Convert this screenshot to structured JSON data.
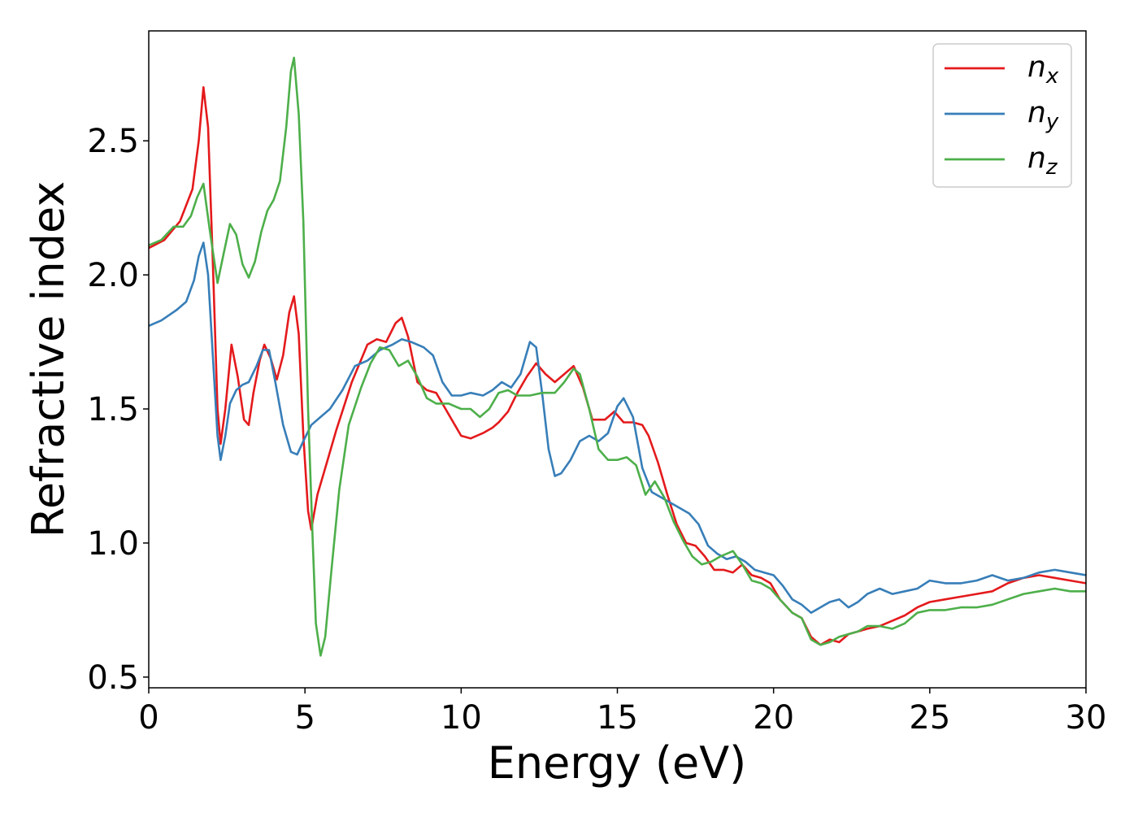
{
  "chart_data": {
    "type": "line",
    "title": "",
    "xlabel": "Energy (eV)",
    "ylabel": "Refractive index",
    "xlim": [
      0,
      30
    ],
    "ylim": [
      0.46,
      2.91
    ],
    "xticks": [
      0,
      5,
      10,
      15,
      20,
      25,
      30
    ],
    "xtick_labels": [
      "0",
      "5",
      "10",
      "15",
      "20",
      "25",
      "30"
    ],
    "yticks": [
      0.5,
      1.0,
      1.5,
      2.0,
      2.5
    ],
    "ytick_labels": [
      "0.5",
      "1.0",
      "1.5",
      "2.0",
      "2.5"
    ],
    "grid": false,
    "legend_position": "top-right",
    "series": [
      {
        "name": "n_x",
        "label_main": "n",
        "label_sub": "x",
        "color": "#e41a1c",
        "points": [
          [
            0,
            2.1
          ],
          [
            0.5,
            2.13
          ],
          [
            1.0,
            2.2
          ],
          [
            1.4,
            2.32
          ],
          [
            1.6,
            2.5
          ],
          [
            1.75,
            2.7
          ],
          [
            1.9,
            2.55
          ],
          [
            2.05,
            2.05
          ],
          [
            2.2,
            1.5
          ],
          [
            2.3,
            1.37
          ],
          [
            2.45,
            1.5
          ],
          [
            2.65,
            1.74
          ],
          [
            2.85,
            1.62
          ],
          [
            3.05,
            1.46
          ],
          [
            3.2,
            1.44
          ],
          [
            3.35,
            1.56
          ],
          [
            3.55,
            1.68
          ],
          [
            3.7,
            1.74
          ],
          [
            3.9,
            1.69
          ],
          [
            4.1,
            1.61
          ],
          [
            4.3,
            1.7
          ],
          [
            4.5,
            1.86
          ],
          [
            4.65,
            1.92
          ],
          [
            4.8,
            1.78
          ],
          [
            4.95,
            1.4
          ],
          [
            5.1,
            1.12
          ],
          [
            5.2,
            1.05
          ],
          [
            5.4,
            1.18
          ],
          [
            5.7,
            1.3
          ],
          [
            6.0,
            1.42
          ],
          [
            6.5,
            1.6
          ],
          [
            7.0,
            1.74
          ],
          [
            7.3,
            1.76
          ],
          [
            7.6,
            1.75
          ],
          [
            7.9,
            1.82
          ],
          [
            8.1,
            1.84
          ],
          [
            8.3,
            1.77
          ],
          [
            8.6,
            1.6
          ],
          [
            8.9,
            1.57
          ],
          [
            9.2,
            1.56
          ],
          [
            9.5,
            1.5
          ],
          [
            9.8,
            1.44
          ],
          [
            10.0,
            1.4
          ],
          [
            10.3,
            1.39
          ],
          [
            10.7,
            1.41
          ],
          [
            11.0,
            1.43
          ],
          [
            11.2,
            1.45
          ],
          [
            11.5,
            1.49
          ],
          [
            11.8,
            1.56
          ],
          [
            12.1,
            1.62
          ],
          [
            12.4,
            1.67
          ],
          [
            12.7,
            1.63
          ],
          [
            13.0,
            1.6
          ],
          [
            13.3,
            1.63
          ],
          [
            13.6,
            1.66
          ],
          [
            13.9,
            1.58
          ],
          [
            14.2,
            1.46
          ],
          [
            14.6,
            1.46
          ],
          [
            14.9,
            1.49
          ],
          [
            15.2,
            1.45
          ],
          [
            15.5,
            1.45
          ],
          [
            15.8,
            1.44
          ],
          [
            16.0,
            1.4
          ],
          [
            16.3,
            1.3
          ],
          [
            16.6,
            1.18
          ],
          [
            16.9,
            1.07
          ],
          [
            17.2,
            1.0
          ],
          [
            17.5,
            0.99
          ],
          [
            17.8,
            0.95
          ],
          [
            18.1,
            0.9
          ],
          [
            18.4,
            0.9
          ],
          [
            18.7,
            0.89
          ],
          [
            19.0,
            0.92
          ],
          [
            19.3,
            0.88
          ],
          [
            19.6,
            0.87
          ],
          [
            19.9,
            0.85
          ],
          [
            20.2,
            0.79
          ],
          [
            20.6,
            0.74
          ],
          [
            20.9,
            0.72
          ],
          [
            21.2,
            0.65
          ],
          [
            21.5,
            0.62
          ],
          [
            21.8,
            0.64
          ],
          [
            22.1,
            0.63
          ],
          [
            22.4,
            0.66
          ],
          [
            22.7,
            0.67
          ],
          [
            23.0,
            0.68
          ],
          [
            23.4,
            0.69
          ],
          [
            23.8,
            0.71
          ],
          [
            24.2,
            0.73
          ],
          [
            24.6,
            0.76
          ],
          [
            25.0,
            0.78
          ],
          [
            25.5,
            0.79
          ],
          [
            26.0,
            0.8
          ],
          [
            26.5,
            0.81
          ],
          [
            27.0,
            0.82
          ],
          [
            27.5,
            0.85
          ],
          [
            28.0,
            0.87
          ],
          [
            28.5,
            0.88
          ],
          [
            29.0,
            0.87
          ],
          [
            29.5,
            0.86
          ],
          [
            30.0,
            0.85
          ]
        ]
      },
      {
        "name": "n_y",
        "label_main": "n",
        "label_sub": "y",
        "color": "#377eb8",
        "points": [
          [
            0,
            1.81
          ],
          [
            0.4,
            1.83
          ],
          [
            0.9,
            1.87
          ],
          [
            1.2,
            1.9
          ],
          [
            1.45,
            1.98
          ],
          [
            1.6,
            2.07
          ],
          [
            1.75,
            2.12
          ],
          [
            1.9,
            2.0
          ],
          [
            2.05,
            1.7
          ],
          [
            2.2,
            1.4
          ],
          [
            2.3,
            1.31
          ],
          [
            2.45,
            1.4
          ],
          [
            2.6,
            1.52
          ],
          [
            2.8,
            1.57
          ],
          [
            3.0,
            1.59
          ],
          [
            3.2,
            1.6
          ],
          [
            3.45,
            1.66
          ],
          [
            3.65,
            1.72
          ],
          [
            3.85,
            1.72
          ],
          [
            4.05,
            1.6
          ],
          [
            4.3,
            1.44
          ],
          [
            4.55,
            1.34
          ],
          [
            4.75,
            1.33
          ],
          [
            4.95,
            1.38
          ],
          [
            5.2,
            1.44
          ],
          [
            5.5,
            1.47
          ],
          [
            5.8,
            1.5
          ],
          [
            6.2,
            1.57
          ],
          [
            6.6,
            1.66
          ],
          [
            7.0,
            1.68
          ],
          [
            7.4,
            1.72
          ],
          [
            7.8,
            1.74
          ],
          [
            8.1,
            1.76
          ],
          [
            8.4,
            1.75
          ],
          [
            8.8,
            1.73
          ],
          [
            9.1,
            1.7
          ],
          [
            9.4,
            1.6
          ],
          [
            9.7,
            1.55
          ],
          [
            10.0,
            1.55
          ],
          [
            10.3,
            1.56
          ],
          [
            10.7,
            1.55
          ],
          [
            11.0,
            1.57
          ],
          [
            11.3,
            1.6
          ],
          [
            11.6,
            1.58
          ],
          [
            11.9,
            1.63
          ],
          [
            12.2,
            1.75
          ],
          [
            12.4,
            1.73
          ],
          [
            12.6,
            1.55
          ],
          [
            12.8,
            1.35
          ],
          [
            13.0,
            1.25
          ],
          [
            13.2,
            1.26
          ],
          [
            13.5,
            1.31
          ],
          [
            13.8,
            1.38
          ],
          [
            14.1,
            1.4
          ],
          [
            14.4,
            1.38
          ],
          [
            14.7,
            1.41
          ],
          [
            15.0,
            1.51
          ],
          [
            15.2,
            1.54
          ],
          [
            15.5,
            1.47
          ],
          [
            15.8,
            1.28
          ],
          [
            16.1,
            1.19
          ],
          [
            16.4,
            1.17
          ],
          [
            16.7,
            1.15
          ],
          [
            17.0,
            1.13
          ],
          [
            17.3,
            1.11
          ],
          [
            17.6,
            1.07
          ],
          [
            17.9,
            0.99
          ],
          [
            18.2,
            0.96
          ],
          [
            18.5,
            0.94
          ],
          [
            18.8,
            0.95
          ],
          [
            19.1,
            0.93
          ],
          [
            19.4,
            0.9
          ],
          [
            19.7,
            0.89
          ],
          [
            20.0,
            0.88
          ],
          [
            20.3,
            0.84
          ],
          [
            20.6,
            0.79
          ],
          [
            20.9,
            0.77
          ],
          [
            21.2,
            0.74
          ],
          [
            21.5,
            0.76
          ],
          [
            21.8,
            0.78
          ],
          [
            22.1,
            0.79
          ],
          [
            22.4,
            0.76
          ],
          [
            22.7,
            0.78
          ],
          [
            23.0,
            0.81
          ],
          [
            23.4,
            0.83
          ],
          [
            23.8,
            0.81
          ],
          [
            24.2,
            0.82
          ],
          [
            24.6,
            0.83
          ],
          [
            25.0,
            0.86
          ],
          [
            25.5,
            0.85
          ],
          [
            26.0,
            0.85
          ],
          [
            26.5,
            0.86
          ],
          [
            27.0,
            0.88
          ],
          [
            27.5,
            0.86
          ],
          [
            28.0,
            0.87
          ],
          [
            28.5,
            0.89
          ],
          [
            29.0,
            0.9
          ],
          [
            29.5,
            0.89
          ],
          [
            30.0,
            0.88
          ]
        ]
      },
      {
        "name": "n_z",
        "label_main": "n",
        "label_sub": "z",
        "color": "#4daf4a",
        "points": [
          [
            0,
            2.11
          ],
          [
            0.4,
            2.13
          ],
          [
            0.8,
            2.18
          ],
          [
            1.1,
            2.18
          ],
          [
            1.35,
            2.22
          ],
          [
            1.55,
            2.29
          ],
          [
            1.75,
            2.34
          ],
          [
            1.95,
            2.17
          ],
          [
            2.2,
            1.97
          ],
          [
            2.4,
            2.08
          ],
          [
            2.6,
            2.19
          ],
          [
            2.8,
            2.15
          ],
          [
            3.0,
            2.04
          ],
          [
            3.2,
            1.99
          ],
          [
            3.4,
            2.05
          ],
          [
            3.6,
            2.16
          ],
          [
            3.8,
            2.24
          ],
          [
            4.0,
            2.28
          ],
          [
            4.2,
            2.35
          ],
          [
            4.4,
            2.55
          ],
          [
            4.55,
            2.76
          ],
          [
            4.65,
            2.81
          ],
          [
            4.8,
            2.6
          ],
          [
            4.95,
            2.2
          ],
          [
            5.1,
            1.5
          ],
          [
            5.25,
            1.0
          ],
          [
            5.35,
            0.7
          ],
          [
            5.5,
            0.58
          ],
          [
            5.65,
            0.65
          ],
          [
            5.85,
            0.9
          ],
          [
            6.1,
            1.2
          ],
          [
            6.4,
            1.44
          ],
          [
            6.8,
            1.58
          ],
          [
            7.1,
            1.67
          ],
          [
            7.4,
            1.73
          ],
          [
            7.7,
            1.72
          ],
          [
            8.0,
            1.66
          ],
          [
            8.3,
            1.68
          ],
          [
            8.6,
            1.62
          ],
          [
            8.9,
            1.54
          ],
          [
            9.2,
            1.52
          ],
          [
            9.6,
            1.52
          ],
          [
            10.0,
            1.5
          ],
          [
            10.3,
            1.5
          ],
          [
            10.6,
            1.47
          ],
          [
            10.9,
            1.5
          ],
          [
            11.2,
            1.56
          ],
          [
            11.5,
            1.57
          ],
          [
            11.8,
            1.55
          ],
          [
            12.2,
            1.55
          ],
          [
            12.6,
            1.56
          ],
          [
            13.0,
            1.56
          ],
          [
            13.3,
            1.6
          ],
          [
            13.6,
            1.65
          ],
          [
            13.8,
            1.63
          ],
          [
            14.1,
            1.5
          ],
          [
            14.4,
            1.35
          ],
          [
            14.7,
            1.31
          ],
          [
            15.0,
            1.31
          ],
          [
            15.3,
            1.32
          ],
          [
            15.6,
            1.29
          ],
          [
            15.9,
            1.18
          ],
          [
            16.2,
            1.23
          ],
          [
            16.5,
            1.17
          ],
          [
            16.8,
            1.08
          ],
          [
            17.1,
            1.01
          ],
          [
            17.4,
            0.95
          ],
          [
            17.7,
            0.92
          ],
          [
            18.0,
            0.93
          ],
          [
            18.3,
            0.95
          ],
          [
            18.7,
            0.97
          ],
          [
            19.0,
            0.92
          ],
          [
            19.3,
            0.86
          ],
          [
            19.6,
            0.85
          ],
          [
            19.9,
            0.83
          ],
          [
            20.2,
            0.79
          ],
          [
            20.6,
            0.74
          ],
          [
            20.9,
            0.72
          ],
          [
            21.2,
            0.64
          ],
          [
            21.5,
            0.62
          ],
          [
            21.8,
            0.63
          ],
          [
            22.1,
            0.65
          ],
          [
            22.4,
            0.66
          ],
          [
            22.7,
            0.67
          ],
          [
            23.0,
            0.69
          ],
          [
            23.4,
            0.69
          ],
          [
            23.8,
            0.68
          ],
          [
            24.2,
            0.7
          ],
          [
            24.6,
            0.74
          ],
          [
            25.0,
            0.75
          ],
          [
            25.5,
            0.75
          ],
          [
            26.0,
            0.76
          ],
          [
            26.5,
            0.76
          ],
          [
            27.0,
            0.77
          ],
          [
            27.5,
            0.79
          ],
          [
            28.0,
            0.81
          ],
          [
            28.5,
            0.82
          ],
          [
            29.0,
            0.83
          ],
          [
            29.5,
            0.82
          ],
          [
            30.0,
            0.82
          ]
        ]
      }
    ]
  }
}
